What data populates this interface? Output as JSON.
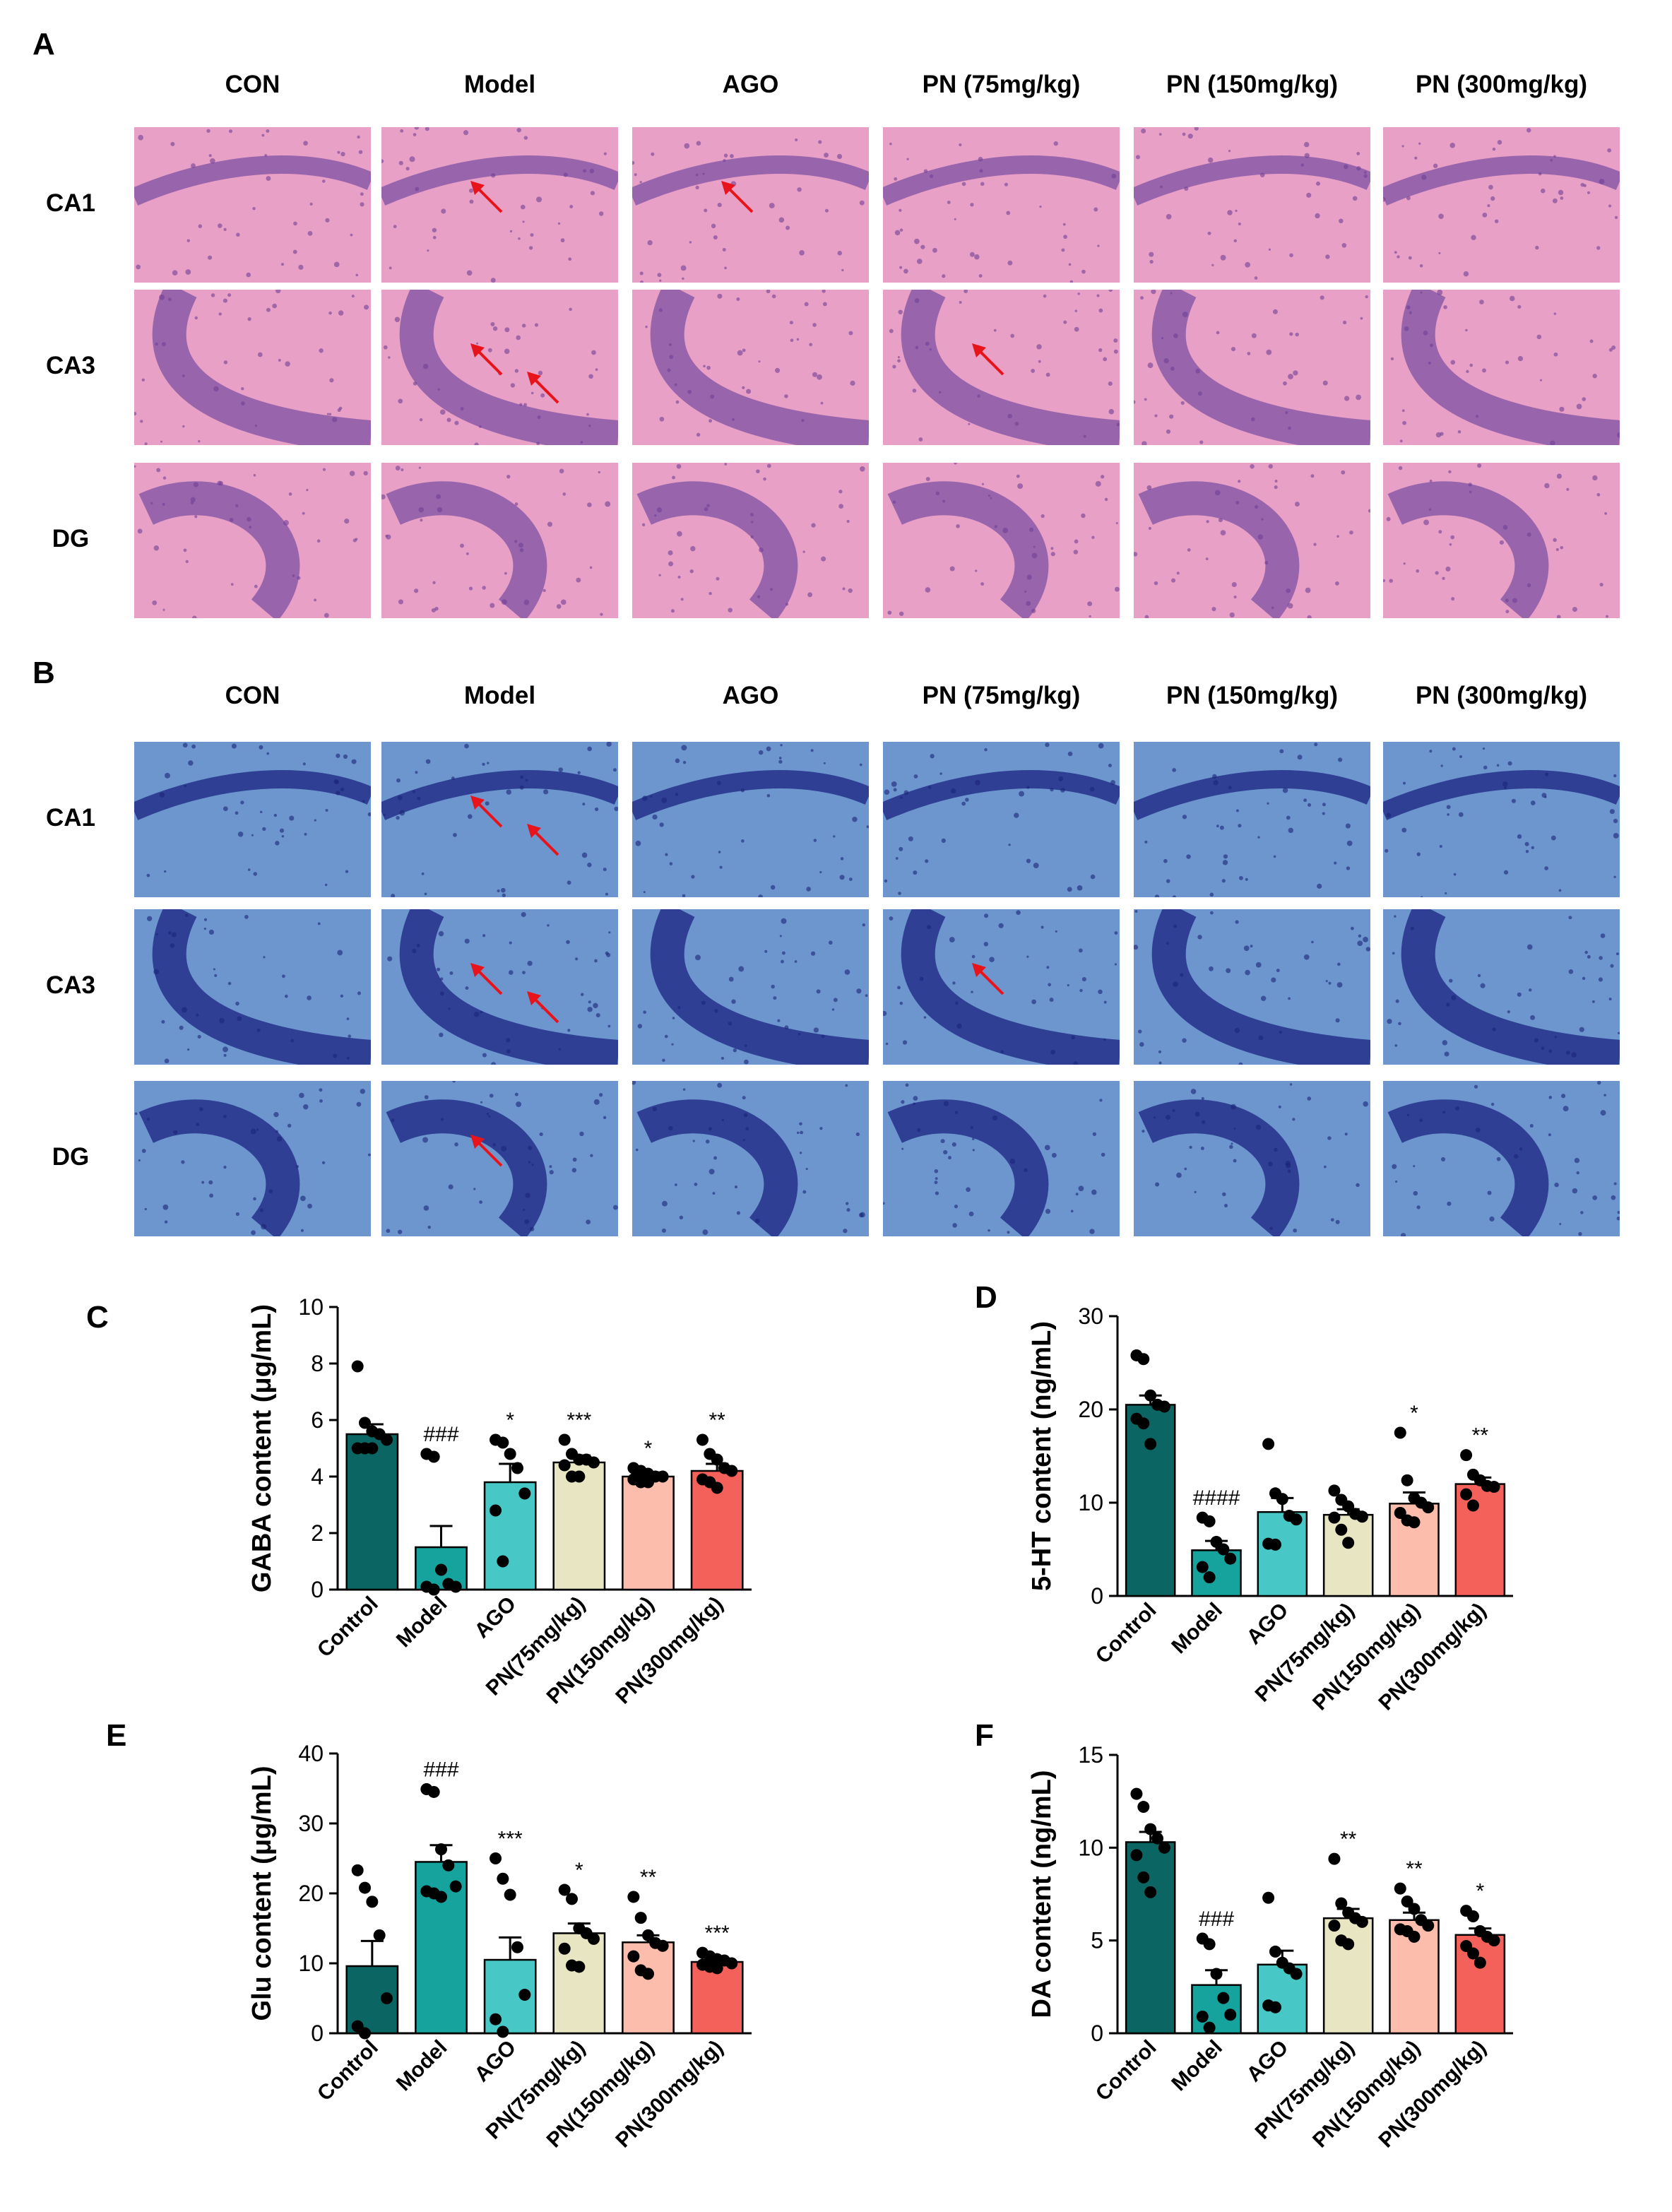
{
  "panels": {
    "A": "A",
    "B": "B",
    "C": "C",
    "D": "D",
    "E": "E",
    "F": "F"
  },
  "histology": {
    "columns": [
      "CON",
      "Model",
      "AGO",
      "PN (75mg/kg)",
      "PN (150mg/kg)",
      "PN (300mg/kg)"
    ],
    "rows": [
      "CA1",
      "CA3",
      "DG"
    ],
    "he_colors": {
      "background": "#e9a0c6",
      "cells": "#8a5aa8",
      "dark": "#6f3f95"
    },
    "nissl_colors": {
      "background": "#6d96cf",
      "cells": "#23308a",
      "dark": "#1b2478"
    },
    "arrow_color": "#e8141b",
    "arrows": {
      "A": [
        {
          "row": 0,
          "col": 1,
          "count": 1
        },
        {
          "row": 0,
          "col": 2,
          "count": 1
        },
        {
          "row": 1,
          "col": 1,
          "count": 2
        },
        {
          "row": 1,
          "col": 3,
          "count": 1
        }
      ],
      "B": [
        {
          "row": 0,
          "col": 1,
          "count": 2
        },
        {
          "row": 1,
          "col": 1,
          "count": 2
        },
        {
          "row": 1,
          "col": 3,
          "count": 1
        },
        {
          "row": 2,
          "col": 1,
          "count": 1
        }
      ]
    }
  },
  "chart_data": [
    {
      "panel": "C",
      "type": "bar",
      "categories": [
        "Control",
        "Model",
        "AGO",
        "PN(75mg/kg)",
        "PN(150mg/kg)",
        "PN(300mg/kg)"
      ],
      "values": [
        5.5,
        1.5,
        3.8,
        4.5,
        4.0,
        4.2
      ],
      "errors": [
        0.35,
        0.75,
        0.65,
        0.25,
        0.15,
        0.25
      ],
      "points": [
        [
          7.9,
          5.9,
          5.6,
          5.5,
          5.3,
          5.0,
          5.0,
          5.0
        ],
        [
          4.8,
          4.7,
          0.7,
          0.2,
          0.1,
          0.1,
          0.0
        ],
        [
          5.3,
          5.2,
          4.8,
          4.3,
          3.4,
          2.8,
          1.0
        ],
        [
          5.3,
          4.8,
          4.6,
          4.6,
          4.5,
          4.4,
          4.0,
          4.0
        ],
        [
          4.3,
          4.2,
          4.1,
          4.0,
          4.0,
          3.9,
          3.8,
          3.8
        ],
        [
          5.3,
          4.8,
          4.6,
          4.3,
          4.2,
          3.9,
          3.8,
          3.6
        ]
      ],
      "annotations": [
        "",
        "###",
        "*",
        "***",
        "*",
        "**"
      ],
      "ylabel": "GABA content (μg/mL)",
      "ylim": [
        0,
        10
      ],
      "yticks": [
        "0",
        "2",
        "4",
        "6",
        "8",
        "10"
      ]
    },
    {
      "panel": "D",
      "type": "bar",
      "categories": [
        "Control",
        "Model",
        "AGO",
        "PN(75mg/kg)",
        "PN(150mg/kg)",
        "PN(300mg/kg)"
      ],
      "values": [
        20.5,
        4.9,
        9.0,
        8.7,
        9.9,
        12.0
      ],
      "errors": [
        1.0,
        1.0,
        1.5,
        0.6,
        1.2,
        0.7
      ],
      "points": [
        [
          25.8,
          25.4,
          21.5,
          20.5,
          20.3,
          19.0,
          18.5,
          16.3
        ],
        [
          8.4,
          8.0,
          5.8,
          5.0,
          4.0,
          3.1,
          2.0
        ],
        [
          16.3,
          11.0,
          10.4,
          8.6,
          8.2,
          5.6,
          5.5
        ],
        [
          11.3,
          10.3,
          9.6,
          8.8,
          8.5,
          8.4,
          7.1,
          5.7
        ],
        [
          17.5,
          12.4,
          10.5,
          10.0,
          9.5,
          8.9,
          8.1,
          7.9
        ],
        [
          15.1,
          13.0,
          12.4,
          11.8,
          11.7,
          10.9,
          9.7
        ]
      ],
      "annotations": [
        "",
        "####",
        "",
        "",
        "*",
        "**"
      ],
      "ylabel": "5-HT content (ng/mL)",
      "ylim": [
        0,
        30
      ],
      "yticks": [
        "0",
        "10",
        "20",
        "30"
      ]
    },
    {
      "panel": "E",
      "type": "bar",
      "categories": [
        "Control",
        "Model",
        "AGO",
        "PN(75mg/kg)",
        "PN(150mg/kg)",
        "PN(300mg/kg)"
      ],
      "values": [
        9.6,
        24.5,
        10.5,
        14.3,
        13.0,
        10.2
      ],
      "errors": [
        3.6,
        2.4,
        3.2,
        1.4,
        1.0,
        0.3
      ],
      "points": [
        [
          23.3,
          20.8,
          18.8,
          14.0,
          5.0,
          1.0,
          0.0
        ],
        [
          34.9,
          34.5,
          26.3,
          24.0,
          21.0,
          20.3,
          20.0,
          19.5
        ],
        [
          25.0,
          22.1,
          19.8,
          12.3,
          5.5,
          2.0,
          0.2
        ],
        [
          20.5,
          19.2,
          15.0,
          14.3,
          13.5,
          12.1,
          9.7,
          9.5
        ],
        [
          19.5,
          16.5,
          14.0,
          12.9,
          12.5,
          11.0,
          9.0,
          8.5
        ],
        [
          11.5,
          11.0,
          10.6,
          10.4,
          10.0,
          9.8,
          9.5,
          9.3
        ]
      ],
      "annotations": [
        "",
        "###",
        "***",
        "*",
        "**",
        "***"
      ],
      "ylabel": "Glu content (μg/mL)",
      "ylim": [
        0,
        40
      ],
      "yticks": [
        "0",
        "10",
        "20",
        "30",
        "40"
      ]
    },
    {
      "panel": "F",
      "type": "bar",
      "categories": [
        "Control",
        "Model",
        "AGO",
        "PN(75mg/kg)",
        "PN(150mg/kg)",
        "PN(300mg/kg)"
      ],
      "values": [
        10.3,
        2.6,
        3.7,
        6.2,
        6.1,
        5.3
      ],
      "errors": [
        0.55,
        0.8,
        0.75,
        0.5,
        0.4,
        0.35
      ],
      "points": [
        [
          12.9,
          12.2,
          11.0,
          10.5,
          10.0,
          9.6,
          8.4,
          7.6
        ],
        [
          5.1,
          4.8,
          3.2,
          1.9,
          1.0,
          0.9,
          0.3
        ],
        [
          7.3,
          4.4,
          3.8,
          3.5,
          3.2,
          1.5,
          1.4
        ],
        [
          9.4,
          7.0,
          6.5,
          6.2,
          6.0,
          5.8,
          5.0,
          4.8
        ],
        [
          7.8,
          7.1,
          6.7,
          6.1,
          5.8,
          5.6,
          5.5,
          5.2
        ],
        [
          6.6,
          6.3,
          5.5,
          5.2,
          5.0,
          4.7,
          4.3,
          3.8
        ]
      ],
      "annotations": [
        "",
        "###",
        "",
        "**",
        "**",
        "*"
      ],
      "ylabel": "DA content (ng/mL)",
      "ylim": [
        0,
        15
      ],
      "yticks": [
        "0",
        "5",
        "10",
        "15"
      ]
    }
  ],
  "bar_colors": [
    "#0b6663",
    "#16a39d",
    "#47c7c5",
    "#e8e5c3",
    "#fcbdac",
    "#f4615a"
  ]
}
